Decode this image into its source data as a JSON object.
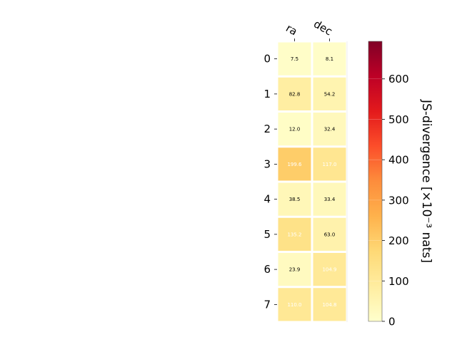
{
  "chart_data": {
    "type": "heatmap",
    "columns": [
      "ra",
      "dec"
    ],
    "rows": [
      "0",
      "1",
      "2",
      "3",
      "4",
      "5",
      "6",
      "7"
    ],
    "values": [
      [
        7.5,
        8.1
      ],
      [
        82.8,
        54.2
      ],
      [
        12.0,
        32.4
      ],
      [
        199.6,
        117.0
      ],
      [
        38.5,
        33.4
      ],
      [
        135.2,
        63.0
      ],
      [
        23.9,
        104.9
      ],
      [
        110.0,
        104.8
      ]
    ],
    "value_labels": [
      [
        "7.5",
        "8.1"
      ],
      [
        "82.8",
        "54.2"
      ],
      [
        "12.0",
        "32.4"
      ],
      [
        "199.6",
        "117.0"
      ],
      [
        "38.5",
        "33.4"
      ],
      [
        "135.2",
        "63.0"
      ],
      [
        "23.9",
        "104.9"
      ],
      [
        "110.0",
        "104.8"
      ]
    ],
    "colorbar": {
      "label": "JS-divergence [×10⁻³ nats]",
      "range": [
        0,
        693
      ],
      "ticks": [
        0,
        100,
        200,
        300,
        400,
        500,
        600
      ],
      "tick_labels": [
        "0",
        "100",
        "200",
        "300",
        "400",
        "500",
        "600"
      ],
      "colormap": "YlOrRd",
      "colormap_stops": [
        "#ffffcc",
        "#ffeda0",
        "#fed976",
        "#feb24c",
        "#fd8d3c",
        "#fc4e2a",
        "#e31a1c",
        "#bd0026",
        "#800026"
      ]
    },
    "label_color_light_threshold": 100,
    "grid": false
  }
}
